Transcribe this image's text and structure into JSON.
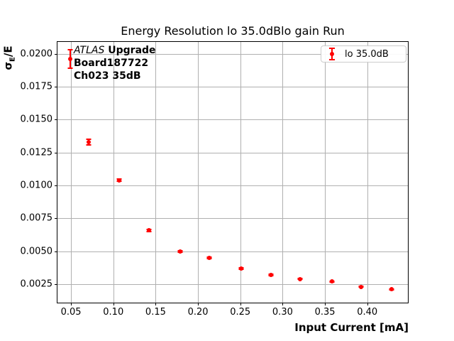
{
  "chart_data": {
    "type": "scatter",
    "title": "Energy Resolution lo 35.0dBlo gain Run",
    "xlabel": "Input Current [mA]",
    "ylabel": {
      "sigma": "σ",
      "subscript": "E",
      "rest": "/E"
    },
    "grid": true,
    "legend": {
      "position": "upper right",
      "label": "lo 35.0dB"
    },
    "axes": {
      "xlim": [
        0.034,
        0.448
      ],
      "ylim": [
        0.0011,
        0.0209
      ],
      "xticks": [
        0.05,
        0.1,
        0.15,
        0.2,
        0.25,
        0.3,
        0.35,
        0.4
      ],
      "xtick_labels": [
        "0.05",
        "0.10",
        "0.15",
        "0.20",
        "0.25",
        "0.30",
        "0.35",
        "0.40"
      ],
      "yticks": [
        0.0025,
        0.005,
        0.0075,
        0.01,
        0.0125,
        0.015,
        0.0175,
        0.02
      ],
      "ytick_labels": [
        "0.0025",
        "0.0050",
        "0.0075",
        "0.0100",
        "0.0125",
        "0.0150",
        "0.0175",
        "0.0200"
      ]
    },
    "series": [
      {
        "name": "lo 35.0dB",
        "color": "#ff0000",
        "marker": "circle",
        "x": [
          0.049,
          0.071,
          0.107,
          0.142,
          0.179,
          0.213,
          0.251,
          0.286,
          0.321,
          0.358,
          0.393,
          0.429
        ],
        "y": [
          0.0196,
          0.0133,
          0.0104,
          0.0066,
          0.005,
          0.0045,
          0.0037,
          0.0032,
          0.0029,
          0.0027,
          0.0023,
          0.0021
        ],
        "yerr": [
          0.0007,
          0.0002,
          0.0001,
          8e-05,
          6e-05,
          5e-05,
          5e-05,
          4e-05,
          4e-05,
          3e-05,
          3e-05,
          3e-05
        ]
      }
    ],
    "colors": {
      "grid": "#b0b0b0",
      "spine": "#000000",
      "series": "#ff0000",
      "legend_border": "#cccccc"
    }
  },
  "annotation": {
    "brand_italic": "ATLAS",
    "line1_bold": " Upgrade",
    "line2": "Board187722",
    "line3": "Ch023 35dB"
  }
}
